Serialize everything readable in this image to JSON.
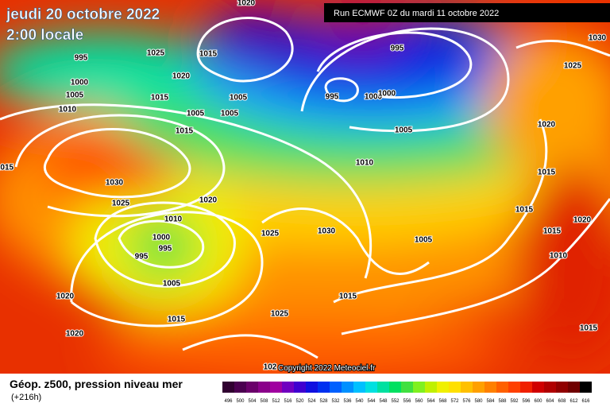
{
  "header": {
    "date": "jeudi 20 octobre 2022",
    "time": "2:00 locale",
    "run": "Run ECMWF 0Z du mardi 11 octobre 2022"
  },
  "copyright": "Copyright 2022 Meteociel.fr",
  "footer": {
    "title": "Géop. z500, pression niveau mer",
    "lead": "(+216h)"
  },
  "legend": {
    "values": [
      496,
      500,
      504,
      508,
      512,
      516,
      520,
      524,
      528,
      532,
      536,
      540,
      544,
      548,
      552,
      556,
      560,
      564,
      568,
      572,
      576,
      580,
      584,
      588,
      592,
      596,
      600,
      604,
      608,
      612,
      616
    ],
    "colors": [
      "#300030",
      "#4b0050",
      "#6a006a",
      "#8a008a",
      "#a000a0",
      "#7000c0",
      "#4000d0",
      "#1010e0",
      "#0030f0",
      "#0060ff",
      "#0090ff",
      "#00c0ff",
      "#00e0e0",
      "#00e0a0",
      "#00e060",
      "#40e040",
      "#80f020",
      "#c0f000",
      "#f0f000",
      "#ffe000",
      "#ffc000",
      "#ffa000",
      "#ff8000",
      "#ff6000",
      "#ff4000",
      "#f02000",
      "#d00000",
      "#b00000",
      "#900000",
      "#700000",
      "#000000"
    ]
  },
  "isobar_labels": [
    "1020",
    "995",
    "1025",
    "1015",
    "1000",
    "1005",
    "1020",
    "1015",
    "1010",
    "1005",
    "1005",
    "1005",
    "995",
    "1000",
    "1000",
    "995",
    "1015",
    "1005",
    "1030",
    "1025",
    "1020",
    "1015",
    "1010",
    "1015",
    "1030",
    "1025",
    "1020",
    "1015",
    "1020",
    "1010",
    "1025",
    "1030",
    "1015",
    "1000",
    "995",
    "995",
    "1005",
    "1010",
    "1005",
    "1020",
    "1015",
    "1025",
    "1015",
    "1020",
    "1015",
    "102"
  ]
}
